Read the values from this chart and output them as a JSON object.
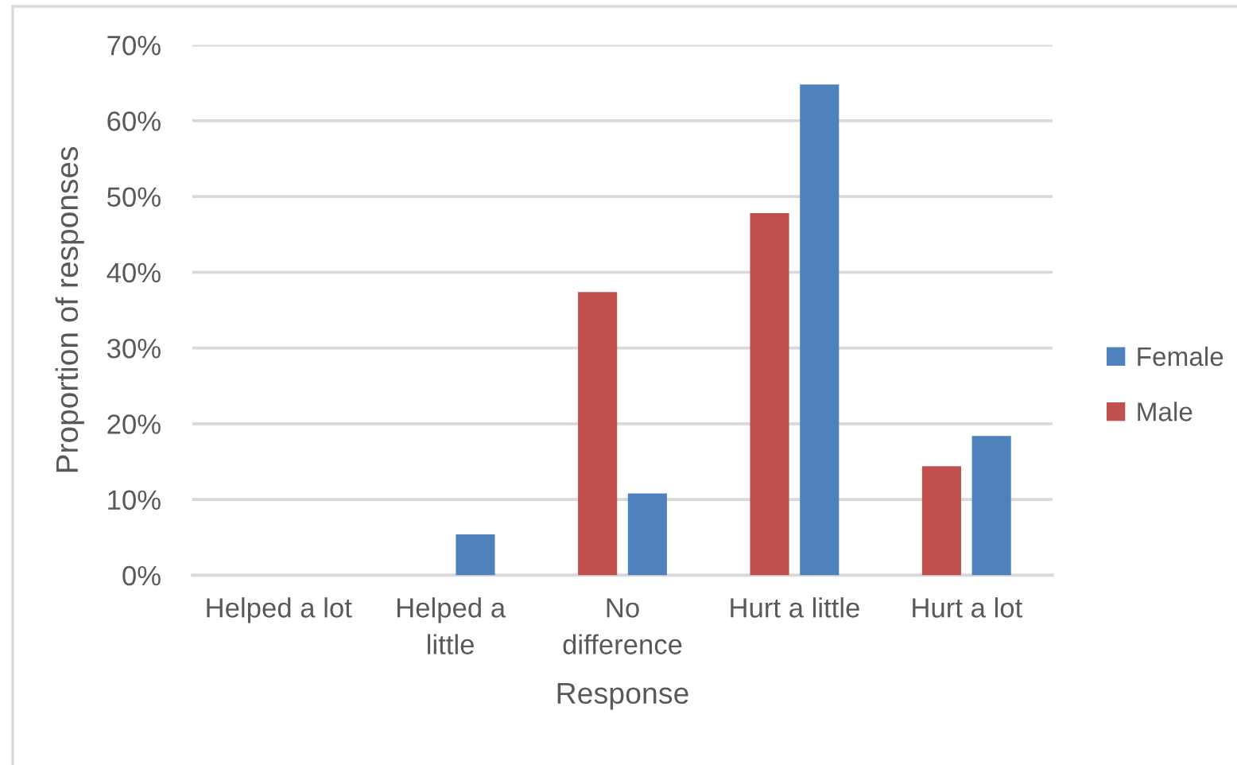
{
  "chart_data": {
    "type": "bar",
    "xlabel": "Response",
    "ylabel": "Proportion of responses",
    "categories": [
      "Helped a lot",
      "Helped a\nlittle",
      "No\ndifference",
      "Hurt a little",
      "Hurt a lot"
    ],
    "series": [
      {
        "name": "Male",
        "color": "#c0504d",
        "values": [
          0,
          0,
          37.4,
          47.8,
          14.4
        ]
      },
      {
        "name": "Female",
        "color": "#4f81bd",
        "values": [
          0,
          5.4,
          10.8,
          64.8,
          18.4
        ]
      }
    ],
    "ylim": [
      0,
      70
    ],
    "yticks": [
      {
        "value": 0,
        "label": "0%"
      },
      {
        "value": 10,
        "label": "10%"
      },
      {
        "value": 20,
        "label": "20%"
      },
      {
        "value": 30,
        "label": "30%"
      },
      {
        "value": 40,
        "label": "40%"
      },
      {
        "value": 50,
        "label": "50%"
      },
      {
        "value": 60,
        "label": "60%"
      },
      {
        "value": 70,
        "label": "70%"
      }
    ],
    "grid": "y",
    "legend": "right"
  }
}
